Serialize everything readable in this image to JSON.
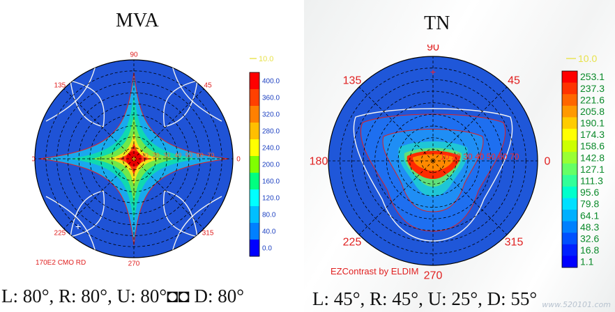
{
  "chart_data": [
    {
      "type": "heatmap",
      "projection": "polar",
      "title": "MVA",
      "caption": "L: 80°, R: 80°, U: 80°◘◘ D: 80°",
      "device_label": "170E2 CMO RD",
      "angle_labels": [
        "90",
        "45",
        "0",
        "315",
        "270",
        "225",
        "180",
        "135"
      ],
      "radial_labels": [
        "10",
        "20",
        "30",
        "40",
        "50",
        "60",
        "70"
      ],
      "legend_contour": "10.0",
      "colorbar_ticks": [
        "400.0",
        "360.0",
        "320.0",
        "280.0",
        "240.0",
        "200.0",
        "160.0",
        "120.0",
        "80.0",
        "40.0",
        "0.0"
      ],
      "colorbar_colors": [
        "#ff0000",
        "#ff4000",
        "#ff8000",
        "#ffbf00",
        "#ffff00",
        "#80ff00",
        "#00ff80",
        "#00ffff",
        "#00bfff",
        "#0080ff",
        "#0000ff"
      ],
      "value_range": [
        0,
        400
      ],
      "max_center": true,
      "pattern": "four-lobed star along 0/90/180/270 axes, contrast decreasing outward"
    },
    {
      "type": "heatmap",
      "projection": "polar",
      "title": "TN",
      "caption": "L: 45°, R: 45°, U: 25°, D: 55°",
      "software_label": "EZContrast by ELDIM",
      "angle_labels": [
        "90",
        "45",
        "0",
        "315",
        "270",
        "225",
        "180",
        "135"
      ],
      "radial_labels": [
        "10",
        "20",
        "30",
        "40",
        "50",
        "60",
        "70"
      ],
      "legend_contour": "10.0",
      "colorbar_ticks": [
        "253.1",
        "237.3",
        "221.6",
        "205.8",
        "190.1",
        "174.3",
        "158.6",
        "142.8",
        "127.1",
        "111.3",
        "95.6",
        "79.8",
        "64.1",
        "48.3",
        "32.6",
        "16.8",
        "1.1"
      ],
      "colorbar_colors": [
        "#ff0000",
        "#ff3300",
        "#ff6600",
        "#ff9900",
        "#ffcc00",
        "#ffff00",
        "#ccff00",
        "#99ff33",
        "#66ff66",
        "#33ff99",
        "#00ffcc",
        "#00e0ff",
        "#00b0ff",
        "#0080ff",
        "#0050ff",
        "#0020ff",
        "#0000ff"
      ],
      "value_range": [
        1.1,
        253.1
      ],
      "pattern": "asymmetric high-contrast region slightly below centre, wide low-contrast lobe toward bottom"
    }
  ],
  "watermark": "www.520101.com"
}
